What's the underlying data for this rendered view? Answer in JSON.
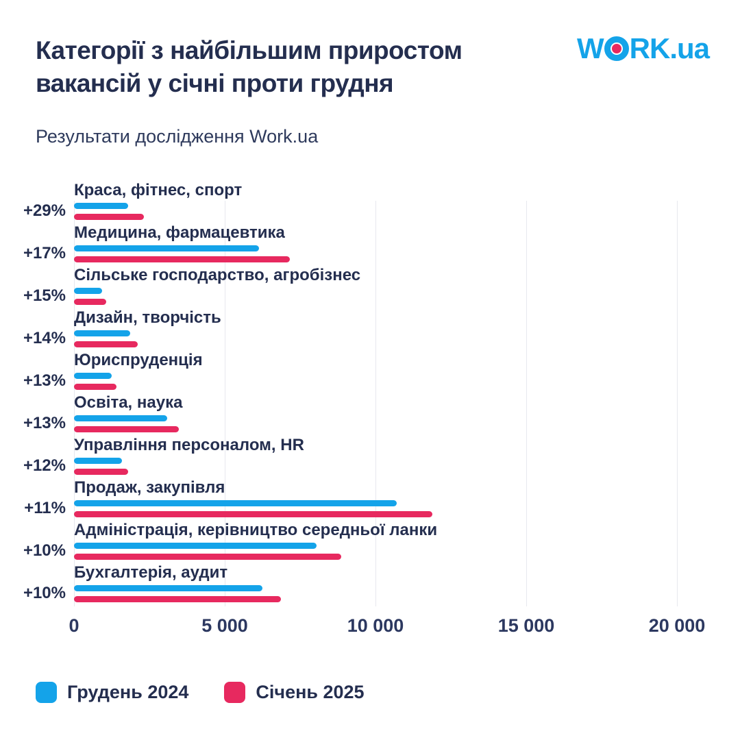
{
  "header": {
    "title_line1": "Категорії з найбільшим приростом",
    "title_line2": "вакансій у січні проти грудня",
    "subtitle": "Результати дослідження Work.ua",
    "logo": {
      "part1": "W",
      "part2": "RK",
      "suffix": ".ua"
    }
  },
  "colors": {
    "blue": "#14a3e9",
    "pink": "#e7295f",
    "navy": "#242e4f",
    "gridline": "#e7e8ee"
  },
  "chart_data": {
    "type": "bar",
    "orientation": "horizontal",
    "title": "Категорії з найбільшим приростом вакансій у січні проти грудня",
    "subtitle": "Результати дослідження Work.ua",
    "xlabel": "",
    "ylabel": "",
    "x_axis": {
      "tick_labels": [
        "0",
        "5 000",
        "10 000",
        "15 000",
        "20 000"
      ],
      "tick_values": [
        0,
        5000,
        10000,
        15000,
        20000
      ],
      "max": 20000,
      "grid": true
    },
    "series_names": [
      "Грудень 2024",
      "Січень 2025"
    ],
    "rows": [
      {
        "category": "Краса, фітнес, спорт",
        "growth": "+29%",
        "dec_2024": 1800,
        "jan_2025": 2320
      },
      {
        "category": "Медицина, фармацевтика",
        "growth": "+17%",
        "dec_2024": 6130,
        "jan_2025": 7170
      },
      {
        "category": "Сільське господарство, агробізнес",
        "growth": "+15%",
        "dec_2024": 930,
        "jan_2025": 1070
      },
      {
        "category": "Дизайн, творчість",
        "growth": "+14%",
        "dec_2024": 1860,
        "jan_2025": 2120
      },
      {
        "category": "Юриспруденція",
        "growth": "+13%",
        "dec_2024": 1240,
        "jan_2025": 1400
      },
      {
        "category": "Освіта, наука",
        "growth": "+13%",
        "dec_2024": 3080,
        "jan_2025": 3480
      },
      {
        "category": "Управління персоналом, HR",
        "growth": "+12%",
        "dec_2024": 1600,
        "jan_2025": 1790
      },
      {
        "category": "Продаж, закупівля",
        "growth": "+11%",
        "dec_2024": 10700,
        "jan_2025": 11880
      },
      {
        "category": "Адміністрація, керівництво середньої ланки",
        "growth": "+10%",
        "dec_2024": 8050,
        "jan_2025": 8860
      },
      {
        "category": "Бухгалтерія, аудит",
        "growth": "+10%",
        "dec_2024": 6240,
        "jan_2025": 6870
      }
    ],
    "legend": [
      {
        "label": "Грудень 2024",
        "color": "#14a3e9"
      },
      {
        "label": "Січень 2025",
        "color": "#e7295f"
      }
    ],
    "legend_position": "bottom"
  }
}
